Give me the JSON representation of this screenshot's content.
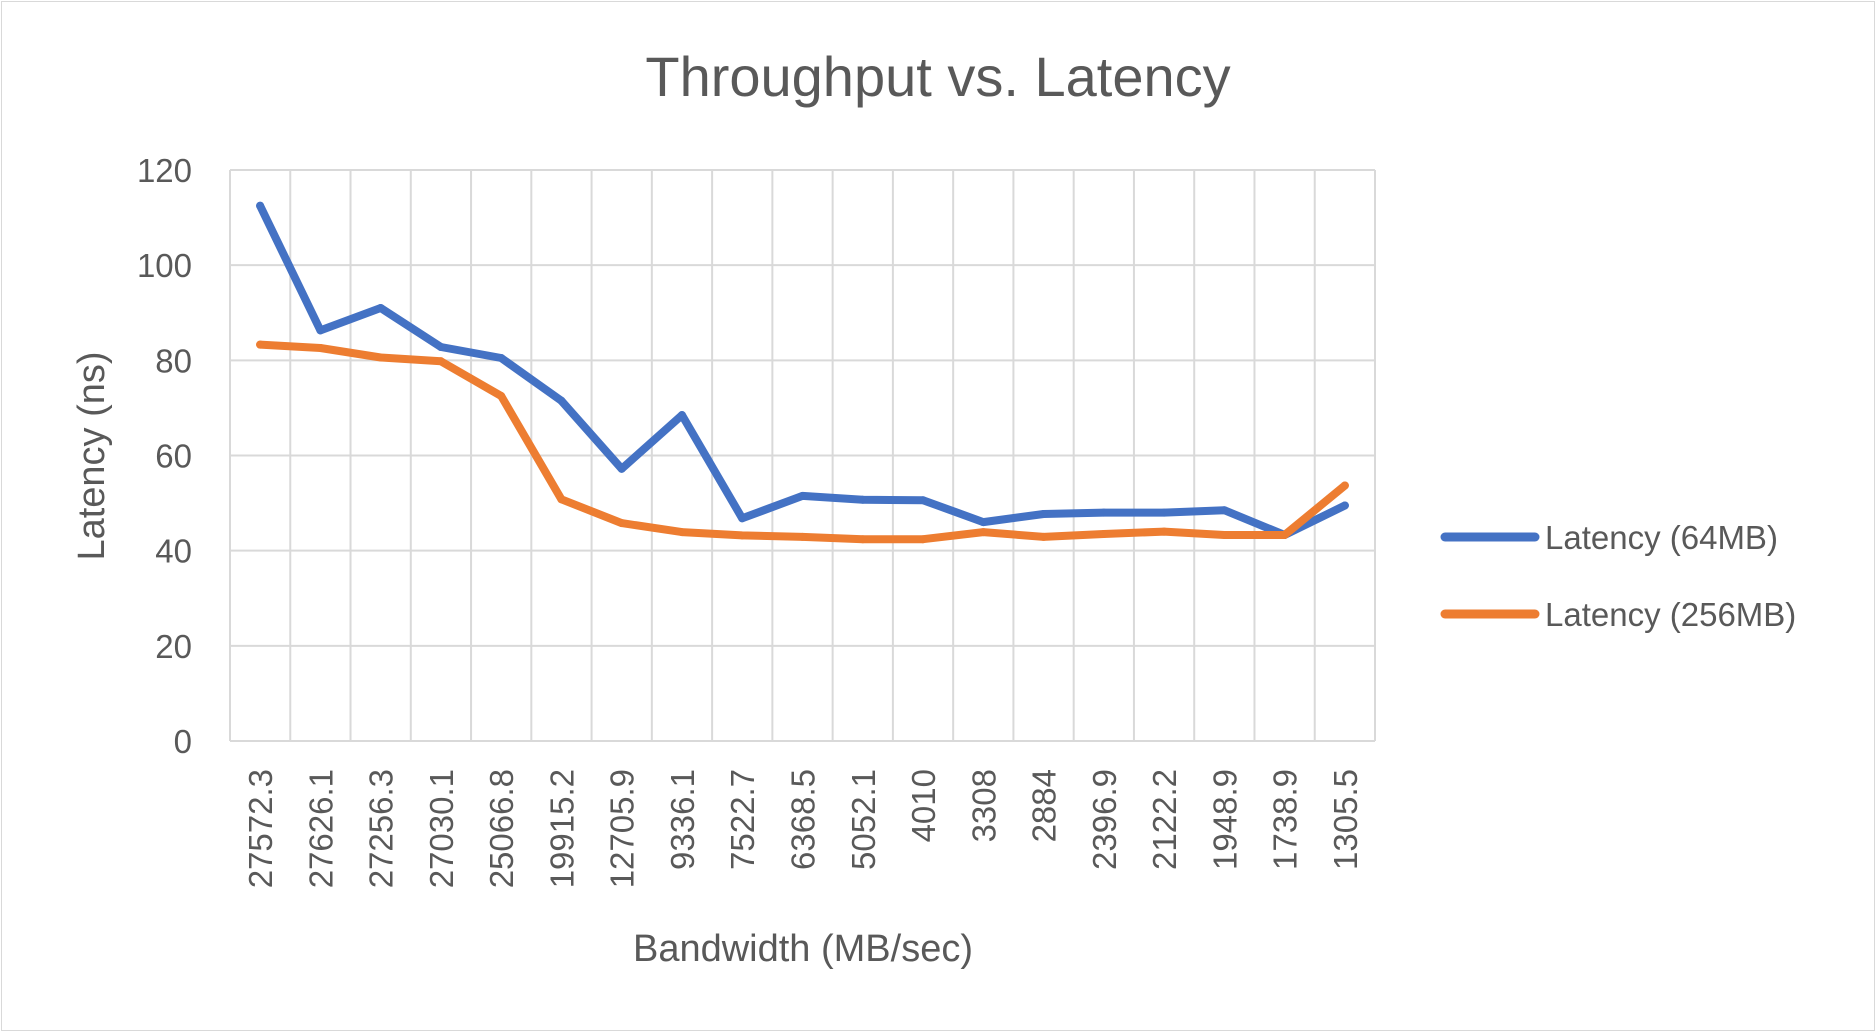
{
  "chart_data": {
    "type": "line",
    "title": "Throughput vs. Latency",
    "xlabel": "Bandwidth (MB/sec)",
    "ylabel": "Latency (ns)",
    "categories": [
      "27572.3",
      "27626.1",
      "27256.3",
      "27030.1",
      "25066.8",
      "19915.2",
      "12705.9",
      "9336.1",
      "7522.7",
      "6368.5",
      "5052.1",
      "4010",
      "3308",
      "2884",
      "2396.9",
      "2122.2",
      "1948.9",
      "1738.9",
      "1305.5"
    ],
    "y_ticks": [
      "0",
      "20",
      "40",
      "60",
      "80",
      "100",
      "120"
    ],
    "ylim": [
      0,
      120
    ],
    "grid": true,
    "legend_position": "right",
    "series": [
      {
        "name": "Latency (64MB)",
        "color": "#4472c4",
        "values": [
          112.5,
          86.3,
          91.0,
          82.8,
          80.5,
          71.5,
          57.2,
          68.5,
          46.8,
          51.5,
          50.7,
          50.6,
          46.0,
          47.7,
          48.0,
          48.0,
          48.5,
          43.3,
          49.5
        ]
      },
      {
        "name": "Latency (256MB)",
        "color": "#ed7d31",
        "values": [
          83.3,
          82.6,
          80.6,
          79.8,
          72.5,
          50.8,
          45.8,
          43.9,
          43.2,
          42.9,
          42.4,
          42.4,
          43.9,
          42.9,
          43.5,
          44.0,
          43.3,
          43.3,
          53.7
        ]
      }
    ]
  }
}
